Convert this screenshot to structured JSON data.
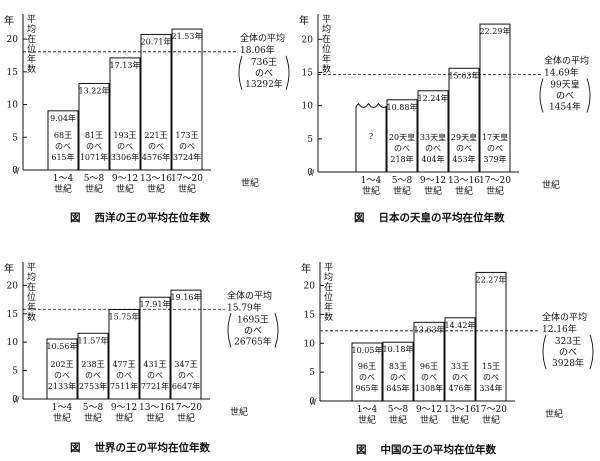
{
  "chart_data": [
    {
      "type": "bar",
      "title": "西洋の王の平均在位年数",
      "figure_label": "図",
      "ylabel": "平均在位年数",
      "y_unit": "年",
      "ylim": [
        0,
        25
      ],
      "yticks": [
        0,
        5,
        10,
        15,
        20
      ],
      "categories": [
        "1～4 世紀",
        "5～8 世紀",
        "9～12 世紀",
        "13～16 世紀",
        "17～20 世紀"
      ],
      "x_unit": "世紀",
      "values": [
        9.04,
        13.22,
        17.13,
        20.71,
        21.53
      ],
      "value_labels": [
        "9.04年",
        "13.22年",
        "17.13年",
        "20.71年",
        "21.53年"
      ],
      "bar_notes": [
        [
          "68王",
          "のべ",
          "615年"
        ],
        [
          "81王",
          "のべ",
          "1071年"
        ],
        [
          "193王",
          "のべ",
          "3306年"
        ],
        [
          "221王",
          "のべ",
          "4576年"
        ],
        [
          "173王",
          "のべ",
          "3724年"
        ]
      ],
      "average": {
        "value": 18.06,
        "label": "全体の平均",
        "value_label": "18.06年",
        "detail": [
          "736王",
          "のべ",
          "13292年"
        ]
      }
    },
    {
      "type": "bar",
      "title": "日本の天皇の平均在位年数",
      "figure_label": "図",
      "ylabel": "平均在位年数",
      "y_unit": "年",
      "ylim": [
        0,
        25
      ],
      "yticks": [
        0,
        5,
        10,
        15,
        20
      ],
      "categories": [
        "1～4 世紀",
        "5～8 世紀",
        "9～12 世紀",
        "13～16 世紀",
        "17～20 世紀"
      ],
      "x_unit": "世紀",
      "values": [
        null,
        10.88,
        12.24,
        15.63,
        22.29
      ],
      "value_labels": [
        "",
        "10.88年",
        "12.24年",
        "15.63年",
        "22.29年"
      ],
      "bar_notes": [
        [
          "?"
        ],
        [
          "20天皇",
          "のべ",
          "218年"
        ],
        [
          "33天皇",
          "のべ",
          "404年"
        ],
        [
          "29天皇",
          "のべ",
          "453年"
        ],
        [
          "17天皇",
          "のべ",
          "379年"
        ]
      ],
      "average": {
        "value": 14.69,
        "label": "全体の平均",
        "value_label": "14.69年",
        "detail": [
          "99天皇",
          "のべ",
          "1454年"
        ]
      }
    },
    {
      "type": "bar",
      "title": "世界の王の平均在位年数",
      "figure_label": "図",
      "ylabel": "平均在位年数",
      "y_unit": "年",
      "ylim": [
        0,
        25
      ],
      "yticks": [
        0,
        5,
        10,
        15,
        20
      ],
      "categories": [
        "1～4 世紀",
        "5～8 世紀",
        "9～12 世紀",
        "13～16 世紀",
        "17～20 世紀"
      ],
      "x_unit": "世紀",
      "values": [
        10.56,
        11.57,
        15.75,
        17.91,
        19.16
      ],
      "value_labels": [
        "10.56年",
        "11.57年",
        "15.75年",
        "17.91年",
        "19.16年"
      ],
      "bar_notes": [
        [
          "202王",
          "のべ",
          "2133年"
        ],
        [
          "238王",
          "のべ",
          "2753年"
        ],
        [
          "477王",
          "のべ",
          "7511年"
        ],
        [
          "431王",
          "のべ",
          "7721年"
        ],
        [
          "347王",
          "のべ",
          "6647年"
        ]
      ],
      "average": {
        "value": 15.79,
        "label": "全体の平均",
        "value_label": "15.79年",
        "detail": [
          "1695王",
          "のべ",
          "26765年"
        ]
      }
    },
    {
      "type": "bar",
      "title": "中国の王の平均在位年数",
      "figure_label": "図",
      "ylabel": "平均在位年数",
      "y_unit": "年",
      "ylim": [
        0,
        25
      ],
      "yticks": [
        0,
        5,
        10,
        15,
        20
      ],
      "categories": [
        "1～4 世紀",
        "5～8 世紀",
        "9～12 世紀",
        "13～16 世紀",
        "17～20 世紀"
      ],
      "x_unit": "世紀",
      "values": [
        10.05,
        10.18,
        13.63,
        14.42,
        22.27
      ],
      "value_labels": [
        "10.05年",
        "10.18年",
        "13.63年",
        "14.42年",
        "22.27年"
      ],
      "bar_notes": [
        [
          "96王",
          "のべ",
          "965年"
        ],
        [
          "83王",
          "のべ",
          "845年"
        ],
        [
          "96王",
          "のべ",
          "1308年"
        ],
        [
          "33王",
          "のべ",
          "476年"
        ],
        [
          "15王",
          "のべ",
          "334年"
        ]
      ],
      "average": {
        "value": 12.16,
        "label": "全体の平均",
        "value_label": "12.16年",
        "detail": [
          "323王",
          "のべ",
          "3928年"
        ]
      }
    }
  ]
}
